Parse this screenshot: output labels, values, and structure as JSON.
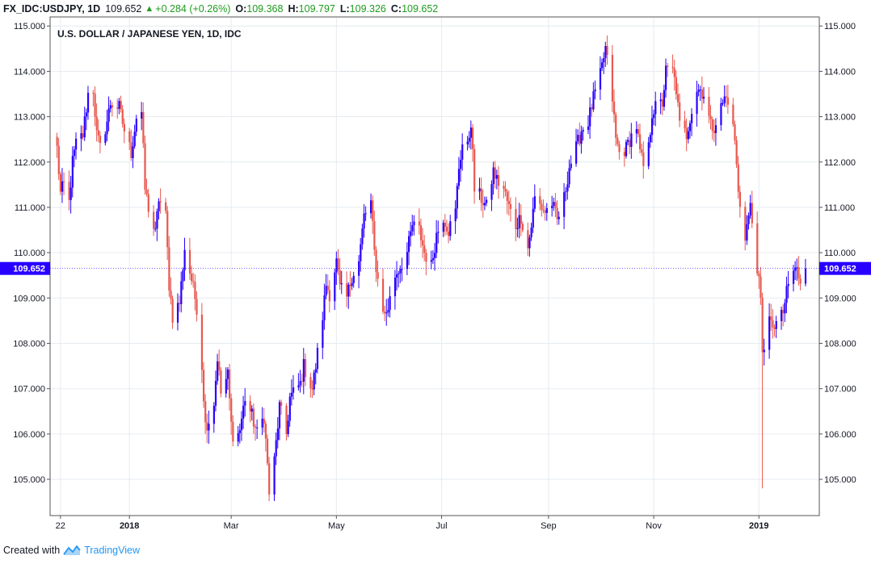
{
  "header": {
    "symbol": "FX_IDC:USDJPY, 1D",
    "price": "109.652",
    "change": "+0.284 (+0.26%)",
    "o_label": "O:",
    "o_value": "109.368",
    "h_label": "H:",
    "h_value": "109.797",
    "l_label": "L:",
    "l_value": "109.326",
    "c_label": "C:",
    "c_value": "109.652"
  },
  "footer": {
    "created_with": "Created with",
    "brand": "TradingView"
  },
  "chart_data": {
    "type": "candlestick",
    "title": "U.S. DOLLAR / JAPANESE YEN, 1D, IDC",
    "y_ticks": [
      "115.000",
      "114.000",
      "113.000",
      "112.000",
      "111.000",
      "110.000",
      "109.000",
      "108.000",
      "107.000",
      "106.000",
      "105.000"
    ],
    "y_range": [
      104.2,
      115.2
    ],
    "x_ticks": [
      {
        "label": "22",
        "bold": false,
        "date": "2017-11-22"
      },
      {
        "label": "2018",
        "bold": true,
        "date": "2018-01-01"
      },
      {
        "label": "Mar",
        "bold": false,
        "date": "2018-03-01"
      },
      {
        "label": "May",
        "bold": false,
        "date": "2018-05-01"
      },
      {
        "label": "Jul",
        "bold": false,
        "date": "2018-07-01"
      },
      {
        "label": "Sep",
        "bold": false,
        "date": "2018-09-01"
      },
      {
        "label": "Nov",
        "bold": false,
        "date": "2018-11-01"
      },
      {
        "label": "2019",
        "bold": true,
        "date": "2019-01-01"
      }
    ],
    "last_price_label": "109.652",
    "last_price": 109.652,
    "colors": {
      "up": "#2800ff",
      "down": "#e8584f",
      "grid": "#e6ebf0",
      "axis": "#555555",
      "price_tag": "#2800ff"
    },
    "grid": true,
    "anchors": [
      [
        "2017-11-20",
        112.3
      ],
      [
        "2017-11-22",
        111.3
      ],
      [
        "2017-11-24",
        111.5
      ],
      [
        "2017-11-27",
        111.1
      ],
      [
        "2017-11-29",
        112.0
      ],
      [
        "2017-12-01",
        112.4
      ],
      [
        "2017-12-05",
        112.6
      ],
      [
        "2017-12-08",
        113.5
      ],
      [
        "2017-12-11",
        113.6
      ],
      [
        "2017-12-13",
        112.6
      ],
      [
        "2017-12-15",
        112.3
      ],
      [
        "2017-12-19",
        112.9
      ],
      [
        "2017-12-21",
        113.3
      ],
      [
        "2017-12-26",
        113.2
      ],
      [
        "2017-12-29",
        112.7
      ],
      [
        "2018-01-02",
        112.2
      ],
      [
        "2018-01-05",
        113.0
      ],
      [
        "2018-01-08",
        113.1
      ],
      [
        "2018-01-10",
        111.4
      ],
      [
        "2018-01-12",
        111.0
      ],
      [
        "2018-01-16",
        110.4
      ],
      [
        "2018-01-18",
        111.2
      ],
      [
        "2018-01-22",
        110.8
      ],
      [
        "2018-01-24",
        109.3
      ],
      [
        "2018-01-26",
        108.6
      ],
      [
        "2018-01-30",
        108.9
      ],
      [
        "2018-02-02",
        110.1
      ],
      [
        "2018-02-06",
        109.4
      ],
      [
        "2018-02-09",
        108.8
      ],
      [
        "2018-02-12",
        107.5
      ],
      [
        "2018-02-14",
        106.2
      ],
      [
        "2018-02-16",
        106.3
      ],
      [
        "2018-02-19",
        106.7
      ],
      [
        "2018-02-21",
        107.7
      ],
      [
        "2018-02-23",
        106.9
      ],
      [
        "2018-02-27",
        107.3
      ],
      [
        "2018-03-01",
        106.2
      ],
      [
        "2018-03-03",
        105.8
      ],
      [
        "2018-03-06",
        106.1
      ],
      [
        "2018-03-09",
        106.8
      ],
      [
        "2018-03-13",
        106.4
      ],
      [
        "2018-03-16",
        106.0
      ],
      [
        "2018-03-20",
        106.4
      ],
      [
        "2018-03-22",
        105.3
      ],
      [
        "2018-03-23",
        104.7
      ],
      [
        "2018-03-26",
        105.4
      ],
      [
        "2018-03-29",
        106.6
      ],
      [
        "2018-04-02",
        106.0
      ],
      [
        "2018-04-04",
        106.8
      ],
      [
        "2018-04-06",
        106.9
      ],
      [
        "2018-04-10",
        107.1
      ],
      [
        "2018-04-12",
        107.5
      ],
      [
        "2018-04-17",
        107.0
      ],
      [
        "2018-04-19",
        107.5
      ],
      [
        "2018-04-23",
        108.6
      ],
      [
        "2018-04-25",
        109.3
      ],
      [
        "2018-04-27",
        109.1
      ],
      [
        "2018-05-01",
        109.8
      ],
      [
        "2018-05-03",
        109.2
      ],
      [
        "2018-05-07",
        109.0
      ],
      [
        "2018-05-10",
        109.5
      ],
      [
        "2018-05-14",
        109.8
      ],
      [
        "2018-05-17",
        110.8
      ],
      [
        "2018-05-21",
        111.1
      ],
      [
        "2018-05-23",
        110.0
      ],
      [
        "2018-05-25",
        109.4
      ],
      [
        "2018-05-29",
        108.6
      ],
      [
        "2018-05-31",
        108.8
      ],
      [
        "2018-06-04",
        109.5
      ],
      [
        "2018-06-07",
        109.7
      ],
      [
        "2018-06-11",
        110.0
      ],
      [
        "2018-06-14",
        110.6
      ],
      [
        "2018-06-18",
        110.5
      ],
      [
        "2018-06-21",
        110.0
      ],
      [
        "2018-06-25",
        109.7
      ],
      [
        "2018-06-28",
        110.4
      ],
      [
        "2018-07-02",
        110.8
      ],
      [
        "2018-07-05",
        110.5
      ],
      [
        "2018-07-09",
        110.9
      ],
      [
        "2018-07-11",
        111.9
      ],
      [
        "2018-07-13",
        112.4
      ],
      [
        "2018-07-16",
        112.3
      ],
      [
        "2018-07-18",
        112.9
      ],
      [
        "2018-07-20",
        111.4
      ],
      [
        "2018-07-24",
        111.2
      ],
      [
        "2018-07-27",
        111.0
      ],
      [
        "2018-07-31",
        111.8
      ],
      [
        "2018-08-02",
        111.6
      ],
      [
        "2018-08-06",
        111.4
      ],
      [
        "2018-08-09",
        111.0
      ],
      [
        "2018-08-13",
        110.6
      ],
      [
        "2018-08-16",
        110.8
      ],
      [
        "2018-08-20",
        110.1
      ],
      [
        "2018-08-22",
        110.6
      ],
      [
        "2018-08-24",
        111.2
      ],
      [
        "2018-08-28",
        111.0
      ],
      [
        "2018-08-30",
        110.9
      ],
      [
        "2018-09-03",
        111.1
      ],
      [
        "2018-09-06",
        110.7
      ],
      [
        "2018-09-10",
        111.2
      ],
      [
        "2018-09-13",
        111.9
      ],
      [
        "2018-09-17",
        112.3
      ],
      [
        "2018-09-20",
        112.7
      ],
      [
        "2018-09-24",
        112.9
      ],
      [
        "2018-09-27",
        113.4
      ],
      [
        "2018-10-01",
        113.9
      ],
      [
        "2018-10-04",
        114.5
      ],
      [
        "2018-10-08",
        113.4
      ],
      [
        "2018-10-10",
        112.5
      ],
      [
        "2018-10-12",
        112.2
      ],
      [
        "2018-10-16",
        112.3
      ],
      [
        "2018-10-18",
        112.5
      ],
      [
        "2018-10-22",
        112.8
      ],
      [
        "2018-10-24",
        112.2
      ],
      [
        "2018-10-26",
        111.9
      ],
      [
        "2018-10-29",
        112.3
      ],
      [
        "2018-10-31",
        113.1
      ],
      [
        "2018-11-02",
        113.2
      ],
      [
        "2018-11-06",
        113.3
      ],
      [
        "2018-11-08",
        114.0
      ],
      [
        "2018-11-12",
        114.0
      ],
      [
        "2018-11-14",
        113.6
      ],
      [
        "2018-11-16",
        112.8
      ],
      [
        "2018-11-20",
        112.6
      ],
      [
        "2018-11-22",
        113.0
      ],
      [
        "2018-11-26",
        113.6
      ],
      [
        "2018-11-28",
        113.6
      ],
      [
        "2018-11-30",
        113.5
      ],
      [
        "2018-12-04",
        112.8
      ],
      [
        "2018-12-06",
        112.8
      ],
      [
        "2018-12-10",
        113.2
      ],
      [
        "2018-12-12",
        113.4
      ],
      [
        "2018-12-14",
        113.4
      ],
      [
        "2018-12-18",
        112.5
      ],
      [
        "2018-12-20",
        111.3
      ],
      [
        "2018-12-24",
        110.4
      ],
      [
        "2018-12-27",
        111.0
      ],
      [
        "2018-12-31",
        109.7
      ],
      [
        "2019-01-02",
        108.9
      ],
      [
        "2019-01-03",
        107.7
      ],
      [
        "2019-01-07",
        108.7
      ],
      [
        "2019-01-09",
        108.2
      ],
      [
        "2019-01-11",
        108.5
      ],
      [
        "2019-01-15",
        108.6
      ],
      [
        "2019-01-17",
        109.2
      ],
      [
        "2019-01-21",
        109.6
      ],
      [
        "2019-01-23",
        109.6
      ],
      [
        "2019-01-25",
        109.4
      ],
      [
        "2019-01-28",
        109.65
      ]
    ]
  }
}
